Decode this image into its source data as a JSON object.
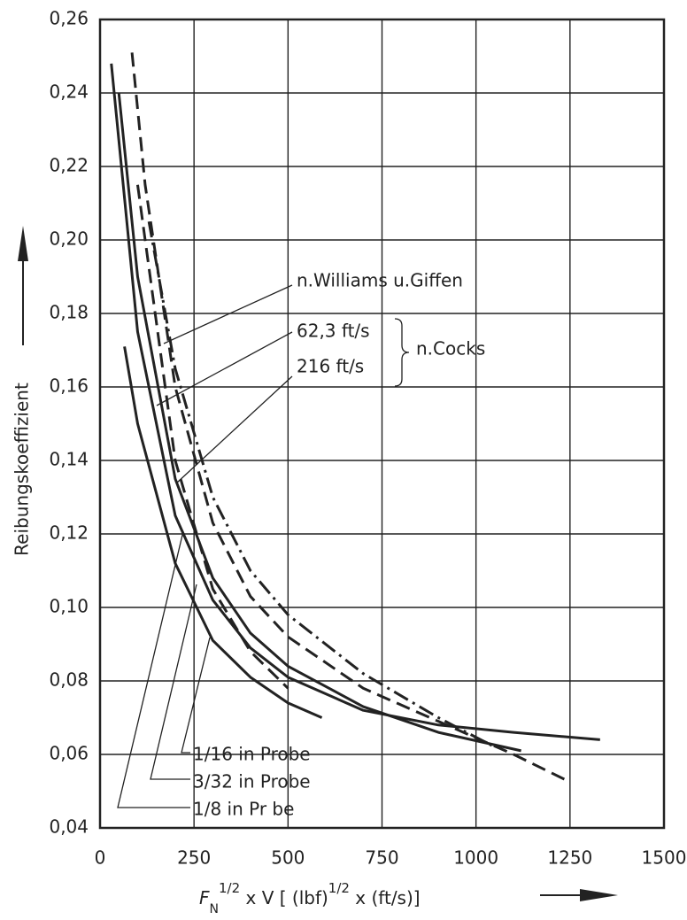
{
  "chart_data": {
    "type": "line",
    "y_label": "Reibungskoeffizient",
    "x_label_parts": [
      "F",
      "N",
      "1/2",
      " x V [ (lbf)",
      "1/2",
      " x (ft/s)]"
    ],
    "annotations": [
      "n.Cocks"
    ],
    "xlim": [
      0,
      1500
    ],
    "ylim": [
      0.04,
      0.26
    ],
    "xticks": [
      0,
      250,
      500,
      750,
      1000,
      1250,
      1500
    ],
    "yticks": [
      {
        "value": 0.04,
        "label": "0,04"
      },
      {
        "value": 0.06,
        "label": "0,06"
      },
      {
        "value": 0.08,
        "label": "0,08"
      },
      {
        "value": 0.1,
        "label": "0,10"
      },
      {
        "value": 0.12,
        "label": "0,12"
      },
      {
        "value": 0.14,
        "label": "0,14"
      },
      {
        "value": 0.16,
        "label": "0,16"
      },
      {
        "value": 0.18,
        "label": "0,18"
      },
      {
        "value": 0.2,
        "label": "0,20"
      },
      {
        "value": 0.22,
        "label": "0,22"
      },
      {
        "value": 0.24,
        "label": "0,24"
      },
      {
        "value": 0.26,
        "label": "0,26"
      }
    ],
    "grid": true,
    "series": [
      {
        "name": "n.Williams u.Giffen",
        "color": "#222222",
        "dash": "dashdot",
        "x": [
          130,
          200,
          300,
          400,
          500,
          700,
          900,
          1050
        ],
        "values": [
          0.205,
          0.165,
          0.13,
          0.11,
          0.098,
          0.082,
          0.07,
          0.062
        ]
      },
      {
        "name": "62,3 ft/s",
        "color": "#222222",
        "dash": "dashed",
        "x": [
          85,
          120,
          200,
          300,
          400,
          500,
          700,
          900,
          1100,
          1240
        ],
        "values": [
          0.251,
          0.215,
          0.16,
          0.123,
          0.103,
          0.092,
          0.078,
          0.069,
          0.06,
          0.053
        ]
      },
      {
        "name": "216 ft/s",
        "color": "#222222",
        "dash": "dashed",
        "x": [
          100,
          200,
          300,
          400,
          500
        ],
        "values": [
          0.215,
          0.14,
          0.105,
          0.088,
          0.078
        ]
      },
      {
        "name": "1/16 in Probe",
        "color": "#222222",
        "dash": "solid",
        "x": [
          65,
          100,
          200,
          300,
          400,
          500,
          590
        ],
        "values": [
          0.171,
          0.15,
          0.112,
          0.091,
          0.081,
          0.074,
          0.07
        ]
      },
      {
        "name": "3/32 in Probe",
        "color": "#222222",
        "dash": "solid",
        "x": [
          50,
          100,
          200,
          300,
          400,
          500,
          700,
          900,
          1120
        ],
        "values": [
          0.24,
          0.19,
          0.135,
          0.108,
          0.093,
          0.084,
          0.073,
          0.066,
          0.061
        ]
      },
      {
        "name": "1/8 in Pr be",
        "color": "#222222",
        "dash": "solid",
        "x": [
          30,
          100,
          200,
          300,
          400,
          500,
          700,
          900,
          1100,
          1330
        ],
        "values": [
          0.248,
          0.175,
          0.125,
          0.102,
          0.089,
          0.081,
          0.072,
          0.068,
          0.066,
          0.064
        ]
      }
    ]
  }
}
